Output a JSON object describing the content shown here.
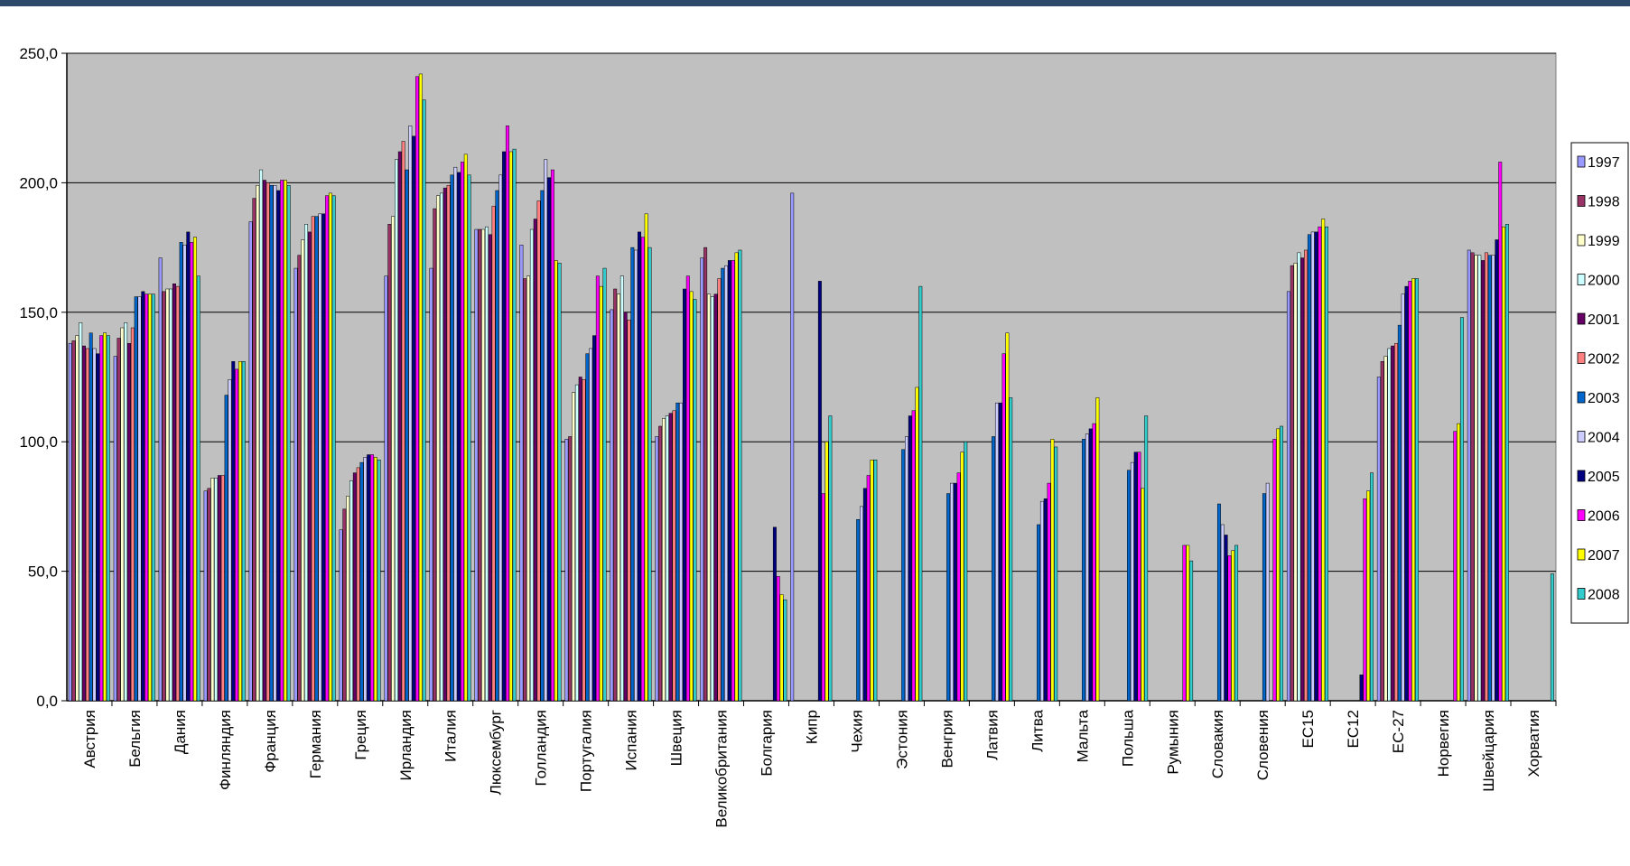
{
  "chart_data": {
    "type": "bar",
    "title": "",
    "xlabel": "",
    "ylabel": "",
    "ylim": [
      0,
      250
    ],
    "yticks": [
      "0,0",
      "50,0",
      "100,0",
      "150,0",
      "200,0",
      "250,0"
    ],
    "grid": true,
    "legend_position": "right",
    "categories": [
      "Австрия",
      "Бельгия",
      "Дания",
      "Финляндия",
      "Франция",
      "Германия",
      "Греция",
      "Ирландия",
      "Италия",
      "Люксембург",
      "Голландия",
      "Португалия",
      "Испания",
      "Швеция",
      "Великобритания",
      "Болгария",
      "Кипр",
      "Чехия",
      "Эстония",
      "Венгрия",
      "Латвия",
      "Литва",
      "Мальта",
      "Польша",
      "Румыния",
      "Словакия",
      "Словения",
      "ЕС15",
      "ЕС12",
      "ЕС-27",
      "Норвегия",
      "Швейцария",
      "Хорватия"
    ],
    "series": [
      {
        "name": "1997",
        "color": "#9999ff",
        "values": [
          138,
          133,
          171,
          81,
          185,
          167,
          66,
          164,
          167,
          182,
          176,
          101,
          151,
          102,
          171,
          null,
          196,
          null,
          null,
          null,
          null,
          null,
          null,
          null,
          null,
          null,
          null,
          158,
          null,
          125,
          null,
          174,
          null
        ]
      },
      {
        "name": "1998",
        "color": "#993366",
        "values": [
          139,
          140,
          158,
          82,
          194,
          172,
          74,
          184,
          190,
          182,
          163,
          102,
          159,
          106,
          175,
          null,
          null,
          null,
          null,
          null,
          null,
          null,
          null,
          null,
          null,
          null,
          null,
          168,
          null,
          131,
          null,
          173,
          null
        ]
      },
      {
        "name": "1999",
        "color": "#ffffcc",
        "values": [
          141,
          144,
          159,
          86,
          199,
          178,
          79,
          187,
          195,
          182,
          164,
          119,
          157,
          109,
          157,
          null,
          null,
          null,
          null,
          null,
          null,
          null,
          null,
          null,
          null,
          null,
          null,
          169,
          null,
          133,
          null,
          172,
          null
        ]
      },
      {
        "name": "2000",
        "color": "#ccffff",
        "values": [
          146,
          146,
          159,
          86,
          205,
          184,
          85,
          209,
          196,
          183,
          182,
          122,
          164,
          110,
          156,
          null,
          null,
          null,
          null,
          null,
          null,
          null,
          null,
          null,
          null,
          null,
          null,
          173,
          null,
          136,
          null,
          172,
          null
        ]
      },
      {
        "name": "2001",
        "color": "#660066",
        "values": [
          137,
          138,
          161,
          87,
          201,
          181,
          88,
          212,
          198,
          180,
          186,
          125,
          150,
          111,
          157,
          null,
          null,
          null,
          null,
          null,
          null,
          null,
          null,
          null,
          null,
          null,
          null,
          171,
          null,
          137,
          null,
          170,
          null
        ]
      },
      {
        "name": "2002",
        "color": "#ff8080",
        "values": [
          136,
          144,
          160,
          87,
          200,
          187,
          90,
          216,
          199,
          191,
          193,
          124,
          147,
          112,
          163,
          null,
          null,
          null,
          null,
          null,
          null,
          null,
          null,
          null,
          null,
          null,
          null,
          174,
          null,
          138,
          null,
          173,
          null
        ]
      },
      {
        "name": "2003",
        "color": "#0066cc",
        "values": [
          142,
          156,
          177,
          118,
          199,
          187,
          92,
          205,
          203,
          197,
          197,
          134,
          175,
          115,
          167,
          null,
          null,
          70,
          97,
          80,
          102,
          68,
          101,
          89,
          null,
          76,
          80,
          180,
          null,
          145,
          null,
          172,
          null
        ]
      },
      {
        "name": "2004",
        "color": "#ccccff",
        "values": [
          136,
          156,
          176,
          124,
          199,
          188,
          94,
          222,
          206,
          203,
          209,
          136,
          174,
          115,
          168,
          null,
          null,
          75,
          102,
          84,
          115,
          77,
          103,
          92,
          null,
          68,
          84,
          181,
          null,
          157,
          null,
          172,
          null
        ]
      },
      {
        "name": "2005",
        "color": "#000080",
        "values": [
          134,
          158,
          181,
          131,
          197,
          188,
          95,
          218,
          204,
          212,
          202,
          141,
          181,
          159,
          170,
          67,
          162,
          82,
          110,
          84,
          115,
          78,
          105,
          96,
          null,
          64,
          null,
          181,
          10,
          160,
          null,
          178,
          null
        ]
      },
      {
        "name": "2006",
        "color": "#ff00ff",
        "values": [
          141,
          157,
          177,
          128,
          201,
          195,
          95,
          241,
          208,
          222,
          205,
          164,
          179,
          164,
          170,
          48,
          80,
          87,
          112,
          88,
          134,
          84,
          107,
          96,
          60,
          56,
          101,
          183,
          78,
          162,
          104,
          208,
          null
        ]
      },
      {
        "name": "2007",
        "color": "#ffff00",
        "values": [
          142,
          157,
          179,
          131,
          201,
          196,
          94,
          242,
          211,
          212,
          170,
          160,
          188,
          158,
          173,
          41,
          100,
          93,
          121,
          96,
          142,
          101,
          117,
          82,
          60,
          58,
          105,
          186,
          81,
          163,
          107,
          183,
          null
        ]
      },
      {
        "name": "2008",
        "color": "#33cccc",
        "values": [
          141,
          157,
          164,
          131,
          199,
          195,
          93,
          232,
          203,
          213,
          169,
          167,
          175,
          155,
          174,
          39,
          110,
          93,
          160,
          100,
          117,
          98,
          null,
          110,
          54,
          60,
          106,
          183,
          88,
          163,
          148,
          184,
          49
        ]
      }
    ]
  }
}
